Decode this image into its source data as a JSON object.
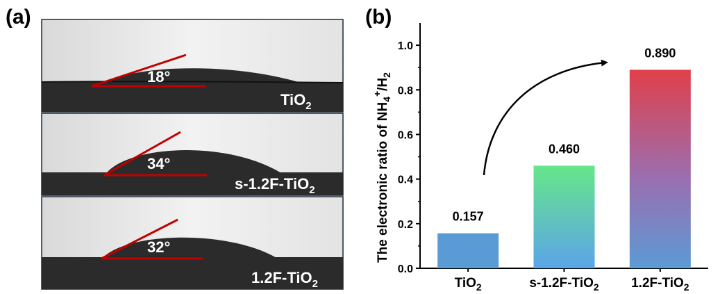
{
  "panel_a": {
    "label": "(a)",
    "photos": [
      {
        "sample": "TiO",
        "sub": "2",
        "suffix": "",
        "angle": "18°"
      },
      {
        "sample": "s-1.2F-TiO",
        "sub": "2",
        "suffix": "",
        "angle": "34°"
      },
      {
        "sample": "1.2F-TiO",
        "sub": "2",
        "suffix": "",
        "angle": "32°"
      }
    ]
  },
  "panel_b": {
    "label": "(b)",
    "ylabel_parts": {
      "pre": "The electronic ratio of NH",
      "sub1": "4",
      "sup": "+",
      "mid": "/H",
      "sub2": "2"
    }
  },
  "colors": {
    "bar_tio2": "#5b9bd5",
    "gradient_s12f": [
      "#66e68a",
      "#5ba4e8"
    ],
    "gradient_12f": [
      "#e0404a",
      "#5b9bd5"
    ],
    "contact_line": "#c00000",
    "arrow": "#000000"
  },
  "chart_data": {
    "type": "bar",
    "categories": [
      {
        "main": "TiO",
        "sub": "2"
      },
      {
        "main": "s-1.2F-TiO",
        "sub": "2"
      },
      {
        "main": "1.2F-TiO",
        "sub": "2"
      }
    ],
    "values": [
      0.157,
      0.46,
      0.89
    ],
    "value_labels": [
      "0.157",
      "0.460",
      "0.890"
    ],
    "yticks": [
      "0.0",
      "0.2",
      "0.4",
      "0.6",
      "0.8",
      "1.0"
    ],
    "ylim": [
      0,
      1.1
    ],
    "grid": false
  }
}
